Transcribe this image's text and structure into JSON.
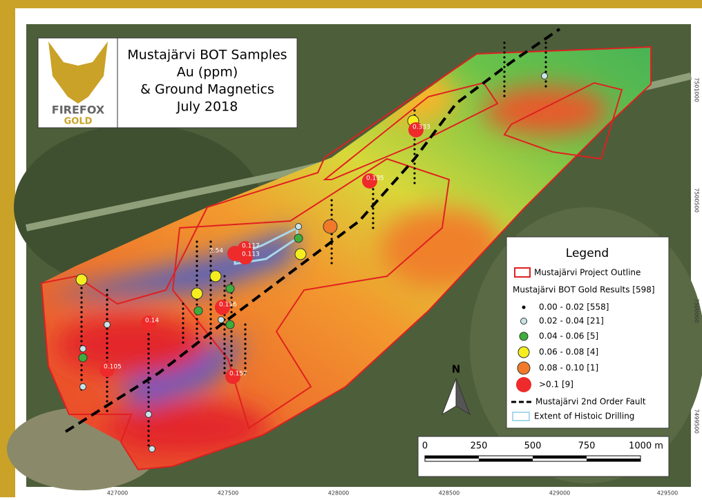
{
  "logo": {
    "name": "FIREFOX",
    "sub": "GOLD"
  },
  "title": [
    "Mustajärvi BOT Samples",
    "Au (ppm)",
    "& Ground Magnetics",
    "July 2018"
  ],
  "legend": {
    "title": "Legend",
    "outline": "Mustajärvi Project Outline",
    "results": "Mustajärvi BOT Gold Results [598]",
    "classes": [
      "0.00 - 0.02 [558]",
      "0.02 - 0.04 [21]",
      "0.04 - 0.06 [5]",
      "0.06 - 0.08 [4]",
      "0.08 - 0.10 [1]",
      ">0.1 [9]"
    ],
    "fault": "Mustajärvi 2nd Order Fault",
    "drilling": "Extent of Histoic Drilling"
  },
  "north": "N",
  "scale": [
    "0",
    "250",
    "500",
    "750",
    "1000 m"
  ],
  "easting": [
    427000,
    427500,
    428000,
    428500,
    429000,
    429500
  ],
  "northing": [
    7501000,
    7500500,
    7500000,
    7499500
  ],
  "samples": [
    "0.333",
    "0.135",
    "2.54",
    "0.117",
    "0.113",
    "0.116",
    "0.14",
    "0.105",
    "0.157"
  ]
}
